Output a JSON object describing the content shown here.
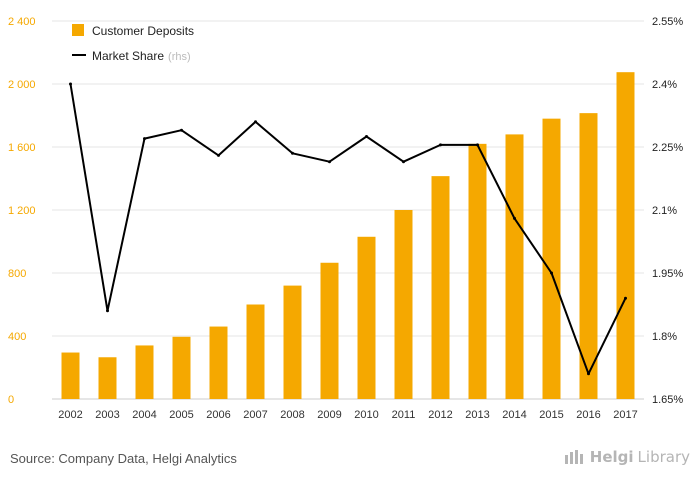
{
  "chart_data": {
    "type": "bar+line",
    "categories": [
      "2002",
      "2003",
      "2004",
      "2005",
      "2006",
      "2007",
      "2008",
      "2009",
      "2010",
      "2011",
      "2012",
      "2013",
      "2014",
      "2015",
      "2016",
      "2017"
    ],
    "series": [
      {
        "name": "Customer Deposits",
        "type": "bar",
        "axis": "left",
        "color": "#f5a800",
        "values": [
          295,
          265,
          340,
          395,
          460,
          600,
          720,
          865,
          1030,
          1200,
          1415,
          1620,
          1680,
          1780,
          1815,
          2075
        ]
      },
      {
        "name": "Market Share",
        "suffix": "(rhs)",
        "type": "line",
        "axis": "right",
        "color": "#000000",
        "values": [
          2.4,
          1.86,
          2.27,
          2.29,
          2.23,
          2.31,
          2.235,
          2.215,
          2.275,
          2.215,
          2.255,
          2.255,
          2.08,
          1.95,
          1.71,
          1.89
        ]
      }
    ],
    "left_axis": {
      "min": 0,
      "max": 2400,
      "ticks": [
        0,
        400,
        800,
        1200,
        1600,
        2000,
        2400
      ],
      "tick_labels": [
        "0",
        "400",
        "800",
        "1 200",
        "1 600",
        "2 000",
        "2 400"
      ]
    },
    "right_axis": {
      "min": 1.65,
      "max": 2.55,
      "ticks": [
        1.65,
        1.8,
        1.95,
        2.1,
        2.25,
        2.4,
        2.55
      ],
      "tick_labels": [
        "1.65%",
        "1.8%",
        "1.95%",
        "2.1%",
        "2.25%",
        "2.4%",
        "2.55%"
      ]
    },
    "legend_position": "top-left",
    "grid": true
  },
  "footer": {
    "source": "Source: Company Data, Helgi Analytics",
    "brand": "Helgi",
    "brand_sub": "Library"
  }
}
